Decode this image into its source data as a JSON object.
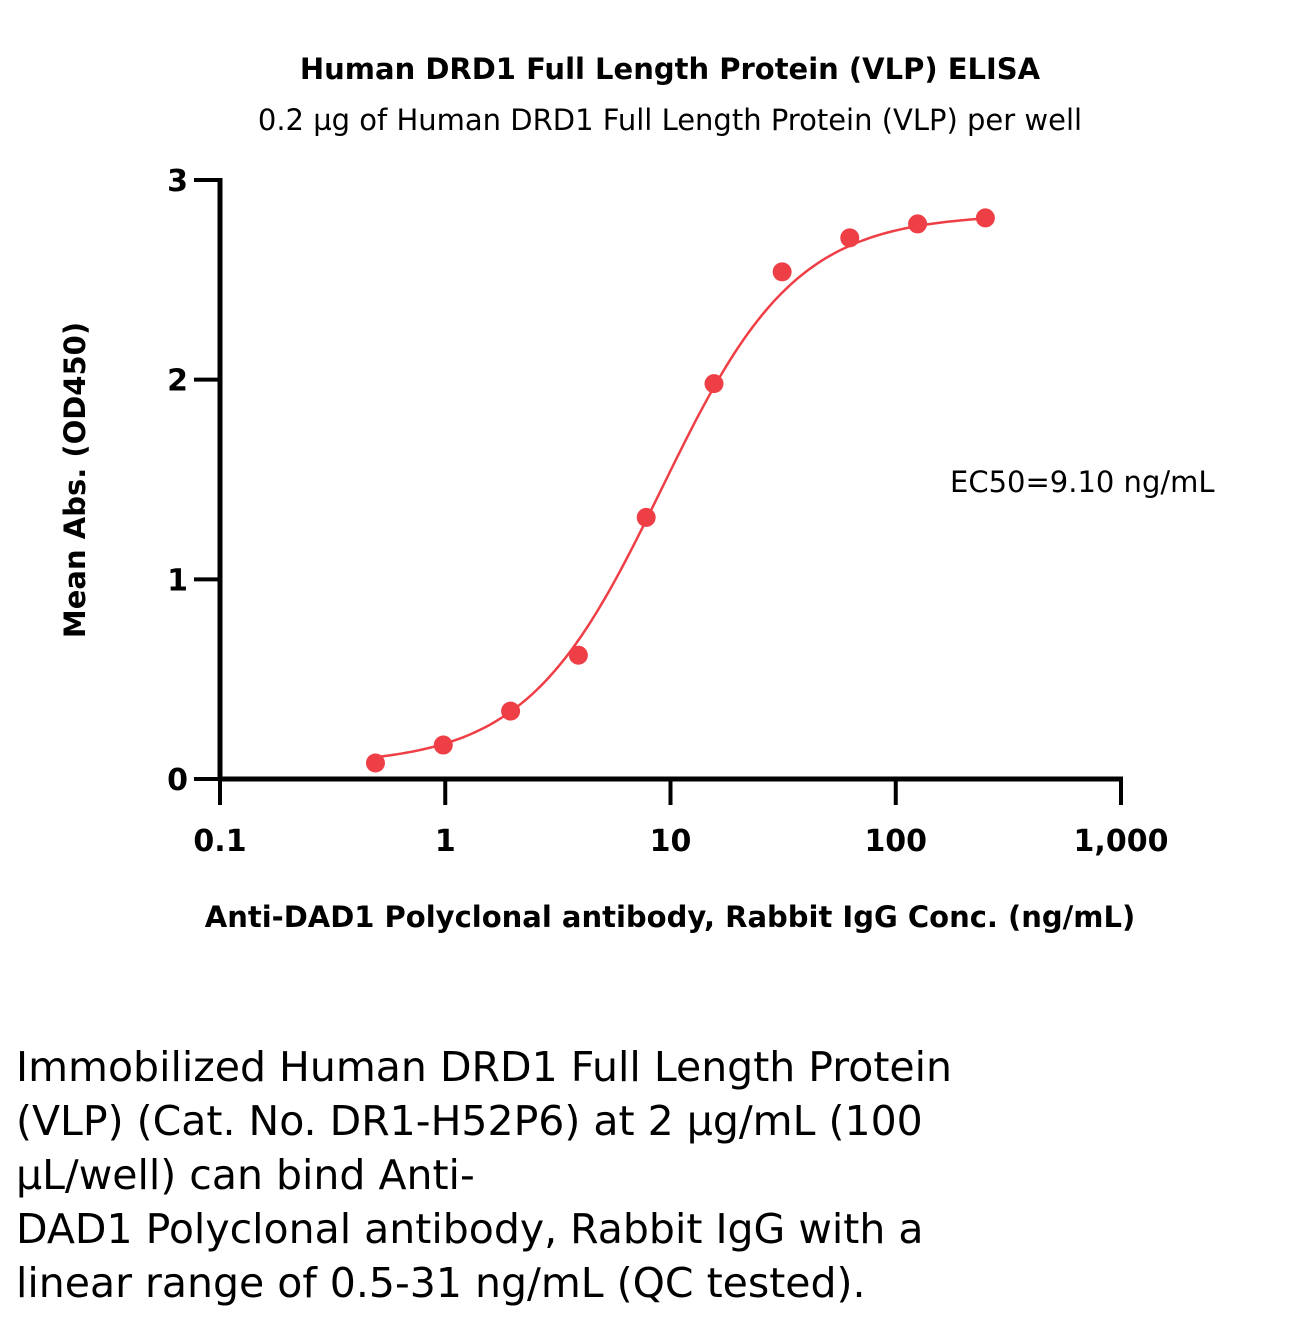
{
  "chart_data": {
    "type": "scatter",
    "title": "Human DRD1 Full Length Protein (VLP) ELISA",
    "subtitle": "0.2 µg of Human DRD1 Full Length Protein (VLP) per well",
    "xlabel": "Anti-DAD1 Polyclonal antibody, Rabbit IgG Conc. (ng/mL)",
    "ylabel": "Mean Abs. (OD450)",
    "x_scale": "log",
    "xlim": [
      0.1,
      1000
    ],
    "ylim": [
      0,
      3
    ],
    "x_ticks": [
      0.1,
      1,
      10,
      100,
      1000
    ],
    "x_tick_labels": [
      "0.1",
      "1",
      "10",
      "100",
      "1,000"
    ],
    "y_ticks": [
      0,
      1,
      2,
      3
    ],
    "y_tick_labels": [
      "0",
      "1",
      "2",
      "3"
    ],
    "grid": false,
    "series": [
      {
        "color": "#ef3f46",
        "x": [
          0.49,
          0.98,
          1.95,
          3.9,
          7.8,
          15.6,
          31.3,
          62.5,
          125,
          250
        ],
        "y": [
          0.08,
          0.17,
          0.34,
          0.62,
          1.31,
          1.98,
          2.54,
          2.71,
          2.78,
          2.81
        ],
        "fit": "4PL sigmoid"
      }
    ],
    "annotations": [
      {
        "text": "EC50=9.10 ng/mL"
      }
    ]
  },
  "caption": {
    "lines": [
      "Immobilized Human DRD1 Full Length Protein",
      "(VLP) (Cat. No. DR1-H52P6) at 2 µg/mL (100",
      "µL/well) can bind Anti-",
      "DAD1 Polyclonal antibody, Rabbit IgG with a",
      "linear range of 0.5-31 ng/mL (QC tested)."
    ]
  }
}
